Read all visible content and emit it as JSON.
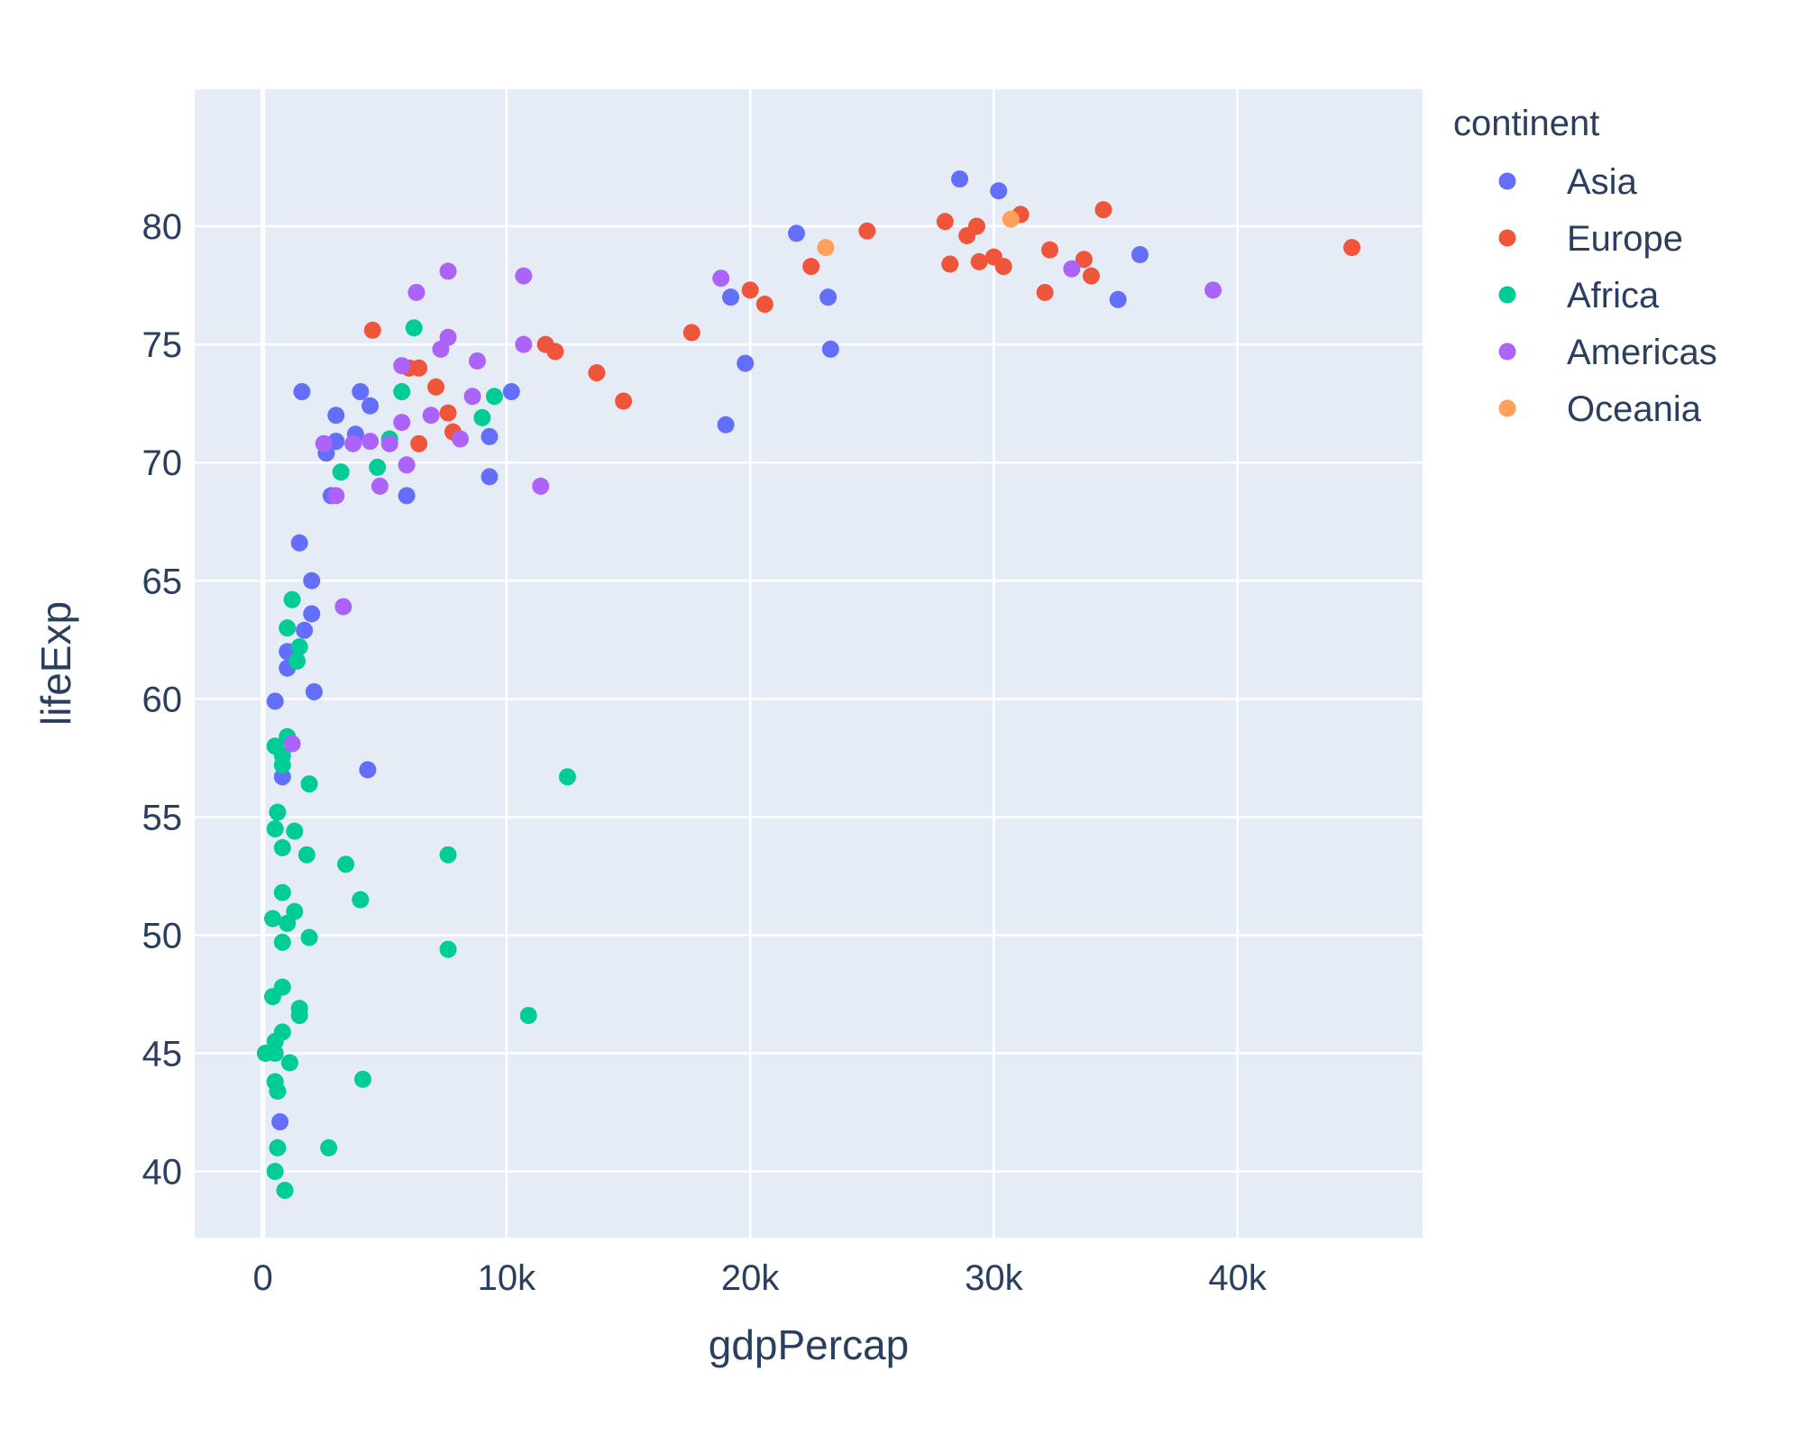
{
  "chart_data": {
    "type": "scatter",
    "xlabel": "gdpPercap",
    "ylabel": "lifeExp",
    "xlim": [
      -2800,
      47600
    ],
    "ylim": [
      37.2,
      85.8
    ],
    "x_ticks": [
      0,
      10000,
      20000,
      30000,
      40000
    ],
    "x_tick_labels": [
      "0",
      "10k",
      "20k",
      "30k",
      "40k"
    ],
    "y_ticks": [
      40,
      45,
      50,
      55,
      60,
      65,
      70,
      75,
      80
    ],
    "y_tick_labels": [
      "40",
      "45",
      "50",
      "55",
      "60",
      "65",
      "70",
      "75",
      "80"
    ],
    "grid": true,
    "plot_bgcolor": "#E5ECF6",
    "legend": {
      "title": "continent",
      "placement": "right"
    },
    "series": [
      {
        "name": "Asia",
        "color": "#636EFA",
        "points": [
          [
            28600,
            82.0
          ],
          [
            30200,
            81.5
          ],
          [
            21900,
            79.7
          ],
          [
            36000,
            78.8
          ],
          [
            35100,
            76.9
          ],
          [
            19200,
            77.0
          ],
          [
            23200,
            77.0
          ],
          [
            19800,
            74.2
          ],
          [
            23300,
            74.8
          ],
          [
            19000,
            71.6
          ],
          [
            1600,
            73.0
          ],
          [
            4000,
            73.0
          ],
          [
            10200,
            73.0
          ],
          [
            3000,
            72.0
          ],
          [
            4400,
            72.4
          ],
          [
            3800,
            71.2
          ],
          [
            3000,
            70.9
          ],
          [
            2600,
            70.4
          ],
          [
            9300,
            71.1
          ],
          [
            9300,
            69.4
          ],
          [
            5900,
            68.6
          ],
          [
            2800,
            68.6
          ],
          [
            1500,
            66.6
          ],
          [
            2000,
            65.0
          ],
          [
            2000,
            63.6
          ],
          [
            1700,
            62.9
          ],
          [
            1000,
            62.0
          ],
          [
            1000,
            61.3
          ],
          [
            2100,
            60.3
          ],
          [
            500,
            59.9
          ],
          [
            4300,
            57.0
          ],
          [
            800,
            56.7
          ],
          [
            700,
            42.1
          ]
        ]
      },
      {
        "name": "Europe",
        "color": "#EF553B",
        "points": [
          [
            44700,
            79.1
          ],
          [
            34500,
            80.7
          ],
          [
            31100,
            80.5
          ],
          [
            28000,
            80.2
          ],
          [
            29300,
            80.0
          ],
          [
            28900,
            79.6
          ],
          [
            24800,
            79.8
          ],
          [
            30000,
            78.7
          ],
          [
            29400,
            78.5
          ],
          [
            28200,
            78.4
          ],
          [
            30400,
            78.3
          ],
          [
            32300,
            79.0
          ],
          [
            33700,
            78.6
          ],
          [
            34000,
            77.9
          ],
          [
            32100,
            77.2
          ],
          [
            22500,
            78.3
          ],
          [
            20000,
            77.3
          ],
          [
            20600,
            76.7
          ],
          [
            17600,
            75.5
          ],
          [
            13700,
            73.8
          ],
          [
            14800,
            72.6
          ],
          [
            11600,
            75.0
          ],
          [
            12000,
            74.7
          ],
          [
            4500,
            75.6
          ],
          [
            6400,
            74.0
          ],
          [
            6000,
            74.0
          ],
          [
            7100,
            73.2
          ],
          [
            7600,
            72.1
          ],
          [
            7800,
            71.3
          ],
          [
            6400,
            70.8
          ]
        ]
      },
      {
        "name": "Africa",
        "color": "#00CC96",
        "points": [
          [
            6200,
            75.7
          ],
          [
            5700,
            73.0
          ],
          [
            9500,
            72.8
          ],
          [
            9000,
            71.9
          ],
          [
            5200,
            71.0
          ],
          [
            4700,
            69.8
          ],
          [
            3200,
            69.6
          ],
          [
            1200,
            64.2
          ],
          [
            1000,
            63.0
          ],
          [
            1500,
            62.2
          ],
          [
            1400,
            61.6
          ],
          [
            1000,
            58.4
          ],
          [
            500,
            58.0
          ],
          [
            800,
            57.6
          ],
          [
            800,
            57.2
          ],
          [
            1900,
            56.4
          ],
          [
            12500,
            56.7
          ],
          [
            600,
            55.2
          ],
          [
            500,
            54.5
          ],
          [
            1300,
            54.4
          ],
          [
            800,
            53.7
          ],
          [
            1800,
            53.4
          ],
          [
            7600,
            53.4
          ],
          [
            3400,
            53.0
          ],
          [
            4000,
            51.5
          ],
          [
            800,
            51.8
          ],
          [
            1300,
            51.0
          ],
          [
            400,
            50.7
          ],
          [
            1000,
            50.5
          ],
          [
            1900,
            49.9
          ],
          [
            800,
            49.7
          ],
          [
            7600,
            49.4
          ],
          [
            800,
            47.8
          ],
          [
            400,
            47.4
          ],
          [
            1500,
            46.9
          ],
          [
            1500,
            46.6
          ],
          [
            10900,
            46.6
          ],
          [
            800,
            45.9
          ],
          [
            500,
            45.5
          ],
          [
            100,
            45.0
          ],
          [
            500,
            45.0
          ],
          [
            1100,
            44.6
          ],
          [
            4100,
            43.9
          ],
          [
            500,
            43.8
          ],
          [
            600,
            43.4
          ],
          [
            2700,
            41.0
          ],
          [
            600,
            41.0
          ],
          [
            500,
            40.0
          ],
          [
            900,
            39.2
          ]
        ]
      },
      {
        "name": "Americas",
        "color": "#AB63FA",
        "points": [
          [
            33200,
            78.2
          ],
          [
            39000,
            77.3
          ],
          [
            18800,
            77.8
          ],
          [
            10700,
            77.9
          ],
          [
            7600,
            78.1
          ],
          [
            6300,
            77.2
          ],
          [
            7600,
            75.3
          ],
          [
            10700,
            75.0
          ],
          [
            7300,
            74.8
          ],
          [
            8800,
            74.3
          ],
          [
            5700,
            74.1
          ],
          [
            8600,
            72.8
          ],
          [
            6900,
            72.0
          ],
          [
            5700,
            71.7
          ],
          [
            8100,
            71.0
          ],
          [
            2500,
            70.8
          ],
          [
            3700,
            70.8
          ],
          [
            4400,
            70.9
          ],
          [
            5200,
            70.8
          ],
          [
            5900,
            69.9
          ],
          [
            4800,
            69.0
          ],
          [
            11400,
            69.0
          ],
          [
            3000,
            68.6
          ],
          [
            3300,
            63.9
          ],
          [
            1200,
            58.1
          ]
        ]
      },
      {
        "name": "Oceania",
        "color": "#FFA15A",
        "points": [
          [
            30700,
            80.3
          ],
          [
            23100,
            79.1
          ]
        ]
      }
    ]
  }
}
